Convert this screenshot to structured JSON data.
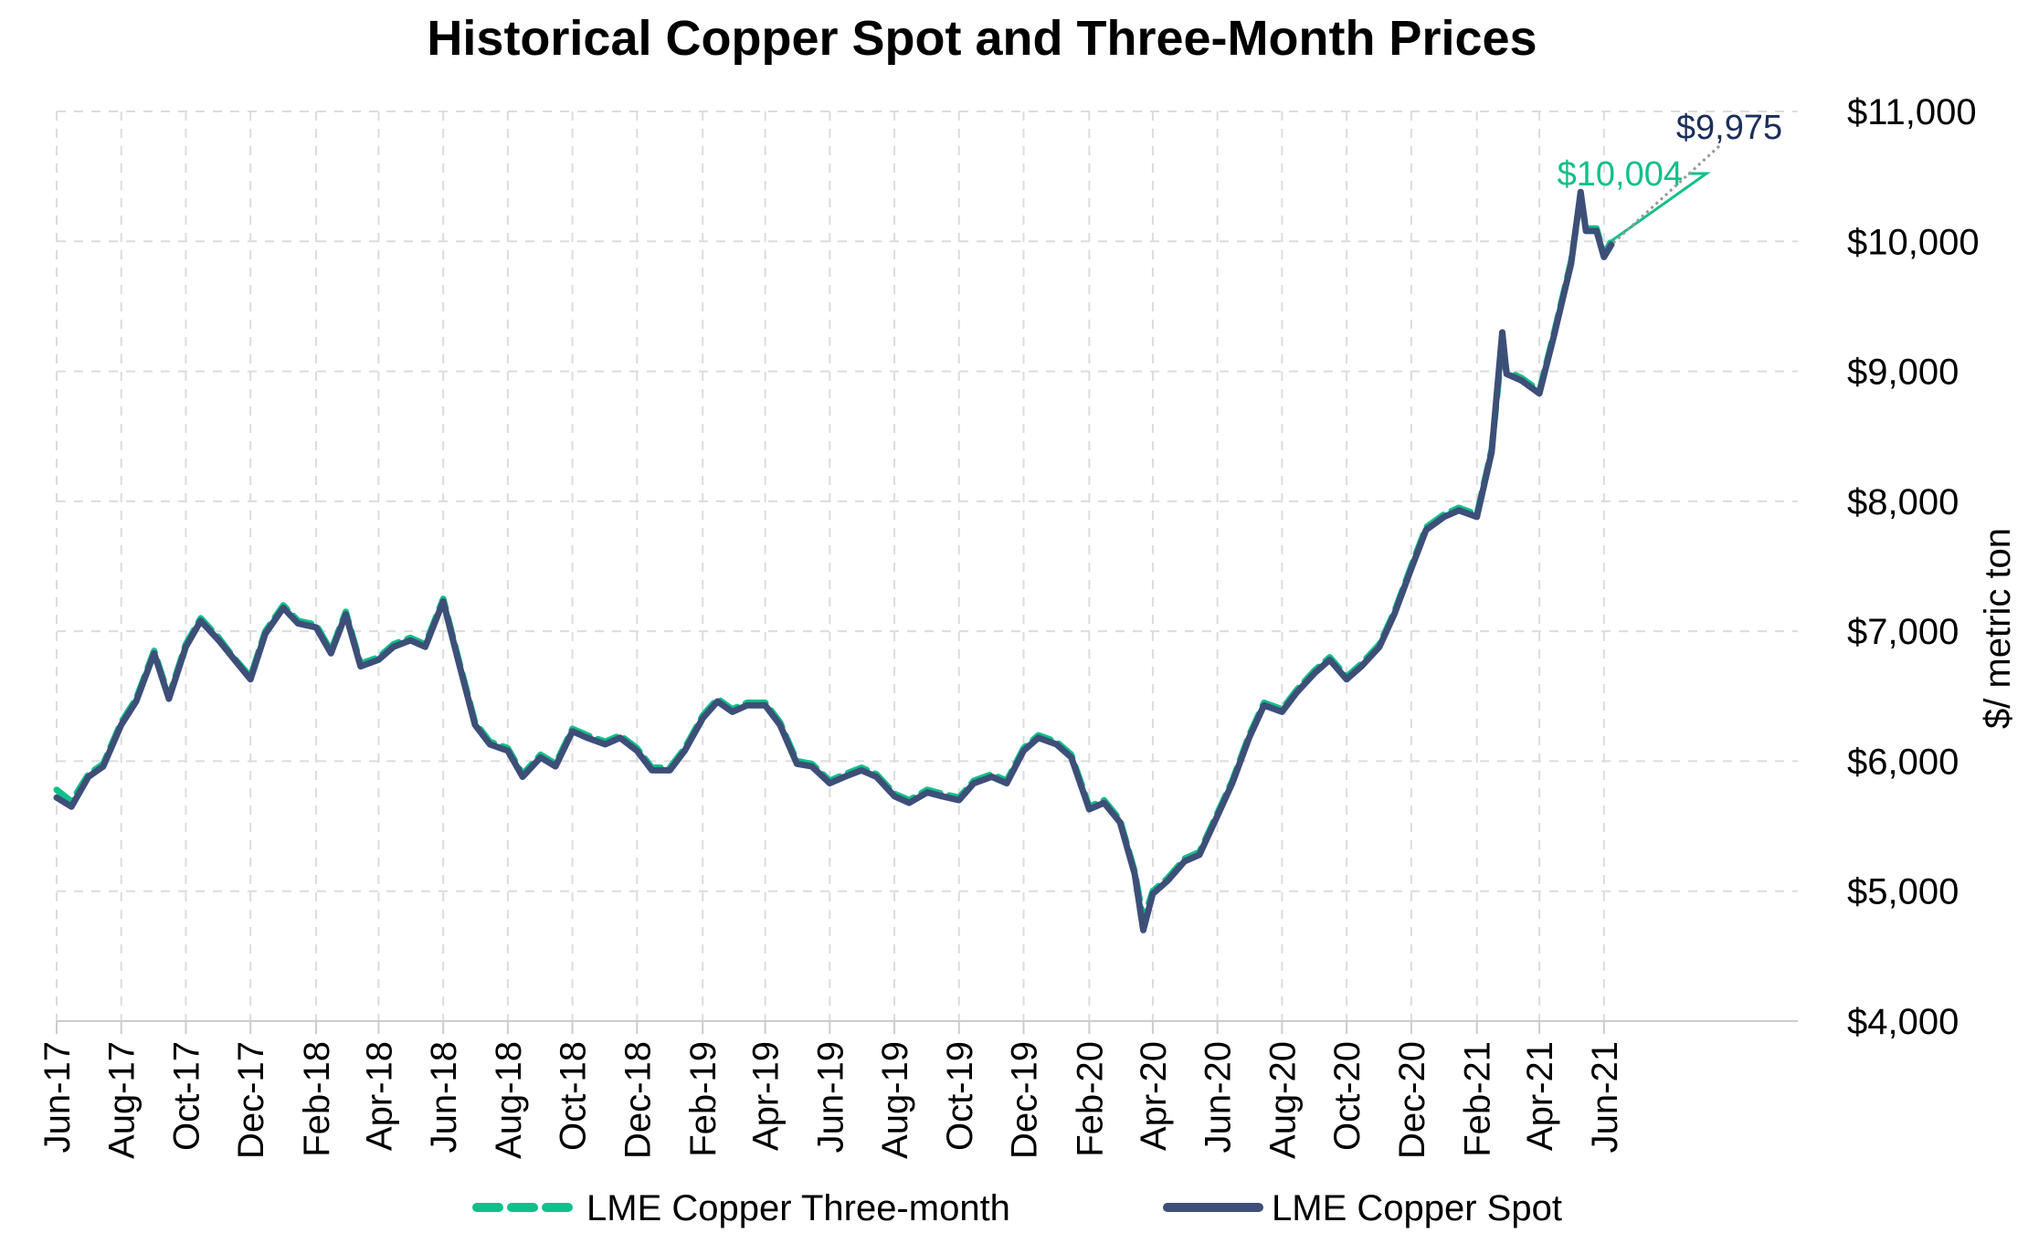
{
  "chart_data": {
    "type": "line",
    "title": "Historical Copper Spot and Three-Month Prices",
    "ylabel": "$/ metric ton",
    "ylim": [
      4000,
      11000
    ],
    "yticks": [
      4000,
      5000,
      6000,
      7000,
      8000,
      9000,
      10000,
      11000
    ],
    "ytick_labels": [
      "$4,000",
      "$5,000",
      "$6,000",
      "$7,000",
      "$8,000",
      "$9,000",
      "$10,000",
      "$11,000"
    ],
    "xlim": [
      "2017-06-01",
      "2021-12-01"
    ],
    "xticks": [
      "2017-06-01",
      "2017-08-01",
      "2017-10-01",
      "2017-12-01",
      "2018-02-01",
      "2018-04-01",
      "2018-06-01",
      "2018-08-01",
      "2018-10-01",
      "2018-12-01",
      "2019-02-01",
      "2019-04-01",
      "2019-06-01",
      "2019-08-01",
      "2019-10-01",
      "2019-12-01",
      "2020-02-01",
      "2020-04-01",
      "2020-06-01",
      "2020-08-01",
      "2020-10-01",
      "2020-12-01",
      "2021-02-01",
      "2021-04-01",
      "2021-06-01"
    ],
    "xtick_labels": [
      "Jun-17",
      "Aug-17",
      "Oct-17",
      "Dec-17",
      "Feb-18",
      "Apr-18",
      "Jun-18",
      "Aug-18",
      "Oct-18",
      "Dec-18",
      "Feb-19",
      "Apr-19",
      "Jun-19",
      "Aug-19",
      "Oct-19",
      "Dec-19",
      "Feb-20",
      "Apr-20",
      "Jun-20",
      "Aug-20",
      "Oct-20",
      "Dec-20",
      "Feb-21",
      "Apr-21",
      "Jun-21"
    ],
    "grid": true,
    "legend_position": "bottom",
    "y_axis_position": "right",
    "x": [
      "2017-06-01",
      "2017-06-15",
      "2017-07-01",
      "2017-07-15",
      "2017-08-01",
      "2017-08-15",
      "2017-09-01",
      "2017-09-15",
      "2017-10-01",
      "2017-10-15",
      "2017-11-01",
      "2017-11-15",
      "2017-12-01",
      "2017-12-15",
      "2018-01-01",
      "2018-01-15",
      "2018-02-01",
      "2018-02-15",
      "2018-03-01",
      "2018-03-15",
      "2018-04-01",
      "2018-04-15",
      "2018-05-01",
      "2018-05-15",
      "2018-06-01",
      "2018-06-15",
      "2018-07-01",
      "2018-07-15",
      "2018-08-01",
      "2018-08-15",
      "2018-09-01",
      "2018-09-15",
      "2018-10-01",
      "2018-10-15",
      "2018-11-01",
      "2018-11-15",
      "2018-12-01",
      "2018-12-15",
      "2019-01-01",
      "2019-01-15",
      "2019-02-01",
      "2019-02-15",
      "2019-03-01",
      "2019-03-15",
      "2019-04-01",
      "2019-04-15",
      "2019-05-01",
      "2019-05-15",
      "2019-06-01",
      "2019-06-15",
      "2019-07-01",
      "2019-07-15",
      "2019-08-01",
      "2019-08-15",
      "2019-09-01",
      "2019-09-15",
      "2019-10-01",
      "2019-10-15",
      "2019-11-01",
      "2019-11-15",
      "2019-12-01",
      "2019-12-15",
      "2020-01-01",
      "2020-01-15",
      "2020-02-01",
      "2020-02-15",
      "2020-03-01",
      "2020-03-15",
      "2020-03-23",
      "2020-04-01",
      "2020-04-15",
      "2020-05-01",
      "2020-05-15",
      "2020-06-01",
      "2020-06-15",
      "2020-07-01",
      "2020-07-15",
      "2020-08-01",
      "2020-08-15",
      "2020-09-01",
      "2020-09-15",
      "2020-10-01",
      "2020-10-15",
      "2020-11-01",
      "2020-11-15",
      "2020-12-01",
      "2020-12-15",
      "2021-01-01",
      "2021-01-15",
      "2021-02-01",
      "2021-02-15",
      "2021-02-25",
      "2021-03-01",
      "2021-03-15",
      "2021-04-01",
      "2021-04-15",
      "2021-05-01",
      "2021-05-10",
      "2021-05-15",
      "2021-05-25",
      "2021-06-01",
      "2021-06-08"
    ],
    "series": [
      {
        "name": "LME Copper Three-month",
        "color": "#10c08a",
        "style": "dashed",
        "values": [
          5780,
          5690,
          5900,
          5980,
          6300,
          6480,
          6850,
          6500,
          6900,
          7100,
          6950,
          6800,
          6650,
          7000,
          7200,
          7080,
          7050,
          6850,
          7150,
          6750,
          6800,
          6900,
          6950,
          6900,
          7250,
          6800,
          6300,
          6150,
          6100,
          5900,
          6050,
          5980,
          6250,
          6200,
          6150,
          6200,
          6100,
          5950,
          5950,
          6100,
          6350,
          6480,
          6400,
          6450,
          6450,
          6300,
          6000,
          5980,
          5850,
          5900,
          5950,
          5900,
          5750,
          5700,
          5780,
          5750,
          5720,
          5850,
          5900,
          5850,
          6100,
          6200,
          6150,
          6050,
          5650,
          5700,
          5550,
          5150,
          4780,
          5000,
          5100,
          5250,
          5300,
          5600,
          5850,
          6200,
          6450,
          6400,
          6550,
          6700,
          6800,
          6650,
          6750,
          6900,
          7150,
          7500,
          7800,
          7900,
          7950,
          7900,
          8400,
          9200,
          9000,
          8950,
          8850,
          9300,
          9850,
          10350,
          10100,
          10100,
          9900,
          10004
        ]
      },
      {
        "name": "LME Copper Spot",
        "color": "#3d4f78",
        "style": "solid",
        "values": [
          5720,
          5650,
          5880,
          5960,
          6280,
          6460,
          6830,
          6480,
          6880,
          7080,
          6930,
          6790,
          6630,
          6980,
          7180,
          7060,
          7030,
          6830,
          7130,
          6730,
          6780,
          6880,
          6930,
          6880,
          7230,
          6780,
          6280,
          6130,
          6080,
          5880,
          6030,
          5960,
          6230,
          6180,
          6130,
          6180,
          6080,
          5930,
          5930,
          6080,
          6330,
          6460,
          6380,
          6430,
          6430,
          6280,
          5980,
          5960,
          5830,
          5880,
          5930,
          5880,
          5730,
          5680,
          5760,
          5730,
          5700,
          5830,
          5880,
          5830,
          6080,
          6180,
          6130,
          6030,
          5630,
          5680,
          5530,
          5130,
          4700,
          4980,
          5080,
          5230,
          5280,
          5580,
          5830,
          6180,
          6430,
          6380,
          6530,
          6680,
          6780,
          6630,
          6730,
          6880,
          7130,
          7480,
          7780,
          7880,
          7930,
          7880,
          8380,
          9300,
          8980,
          8930,
          8830,
          9280,
          9830,
          10380,
          10080,
          10080,
          9880,
          9975
        ]
      }
    ],
    "annotations": [
      {
        "series": "LME Copper Three-month",
        "label": "$10,004",
        "value": 10004,
        "color": "#10c08a"
      },
      {
        "series": "LME Copper Spot",
        "label": "$9,975",
        "value": 9975,
        "color": "#1b2f5b"
      }
    ]
  }
}
